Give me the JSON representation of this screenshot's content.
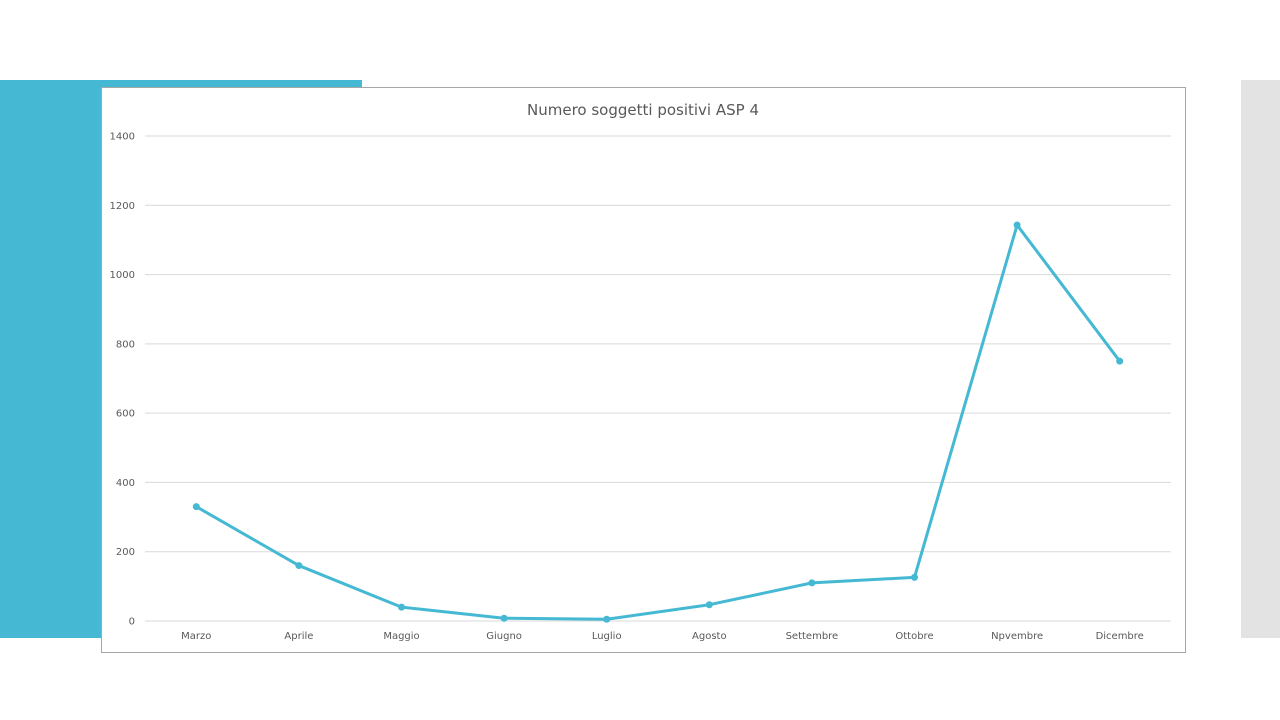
{
  "chart_data": {
    "type": "line",
    "title": "Numero soggetti positivi ASP 4",
    "xlabel": "",
    "ylabel": "",
    "categories": [
      "Marzo",
      "Aprile",
      "Maggio",
      "Giugno",
      "Luglio",
      "Agosto",
      "Settembre",
      "Ottobre",
      "Npvembre",
      "Dicembre"
    ],
    "series": [
      {
        "values": [
          330,
          160,
          40,
          8,
          5,
          47,
          110,
          126,
          1143,
          750
        ]
      }
    ],
    "ylim": [
      0,
      1400
    ],
    "yticks": [
      0,
      200,
      400,
      600,
      800,
      1000,
      1200,
      1400
    ],
    "grid": true,
    "legend": "none",
    "colors": {
      "line": "#45b9d3",
      "accent": "#45b9d3",
      "side_panel": "#e3e3e3"
    }
  }
}
